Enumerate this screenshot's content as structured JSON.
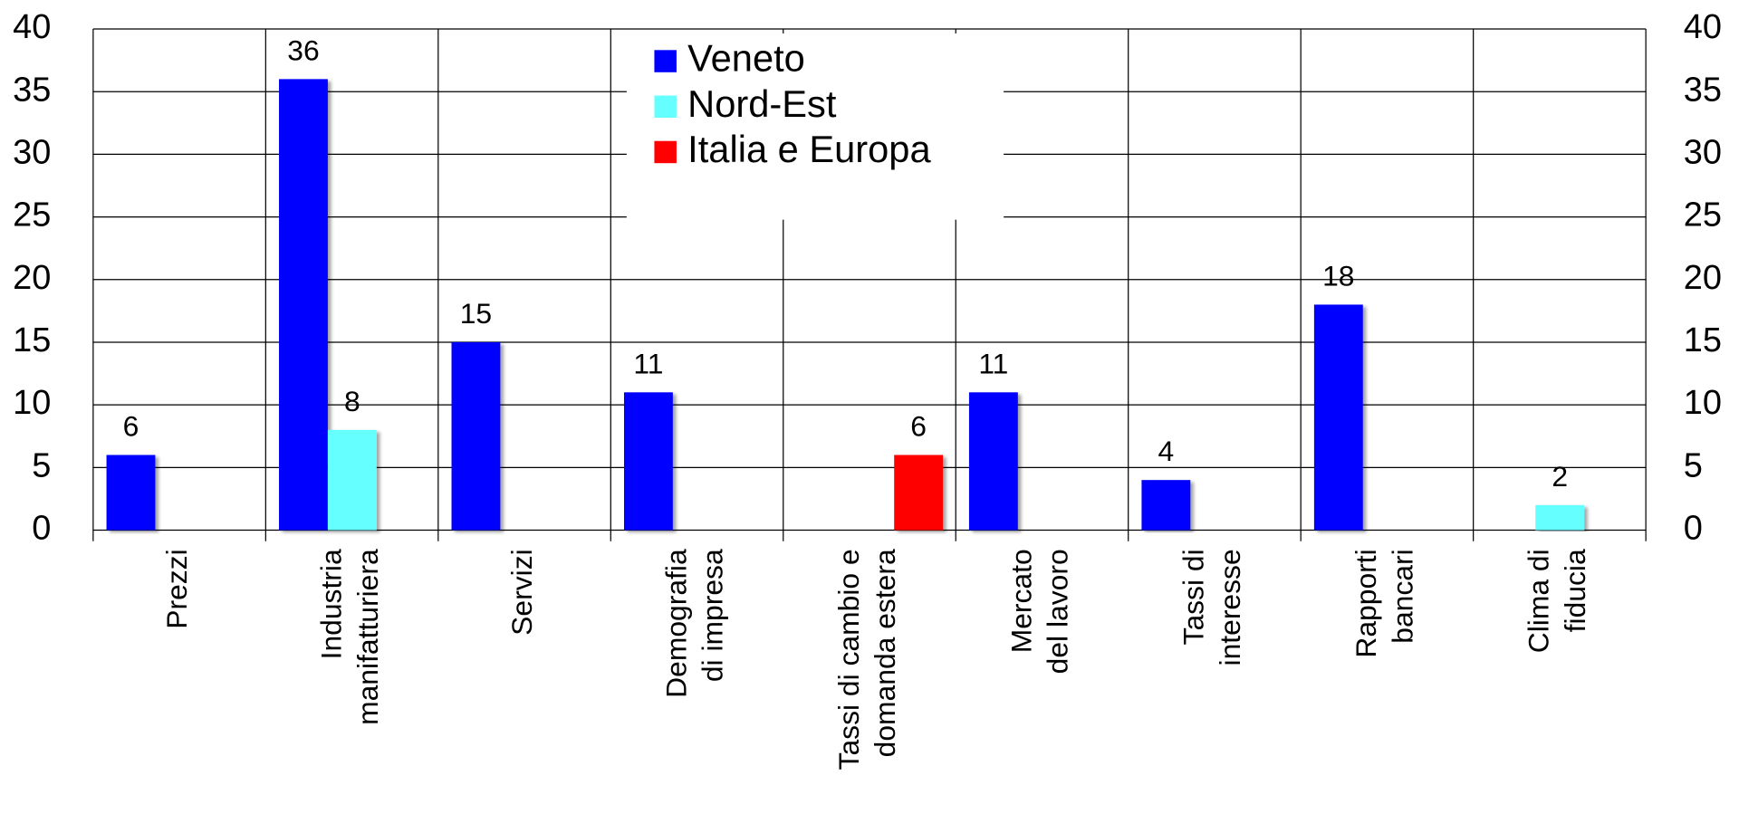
{
  "chart_data": {
    "type": "bar",
    "categories": [
      "Prezzi",
      "Industria\nmanifatturiera",
      "Servizi",
      "Demografia\ndi impresa",
      "Tassi di cambio e\ndomanda estera",
      "Mercato\ndel lavoro",
      "Tassi di\ninteresse",
      "Rapporti\nbancari",
      "Clima di\nfiducia"
    ],
    "series": [
      {
        "name": "Veneto",
        "color": "#0000ff",
        "values": [
          6,
          36,
          15,
          11,
          null,
          11,
          4,
          18,
          null
        ]
      },
      {
        "name": "Nord-Est",
        "color": "#66ffff",
        "values": [
          null,
          8,
          null,
          null,
          null,
          null,
          null,
          null,
          2
        ]
      },
      {
        "name": "Italia e Europa",
        "color": "#ff0000",
        "values": [
          null,
          null,
          null,
          null,
          6,
          null,
          null,
          null,
          null
        ]
      }
    ],
    "ylim": [
      0,
      40
    ],
    "yticks": [
      0,
      5,
      10,
      15,
      20,
      25,
      30,
      35,
      40
    ],
    "y2lim": [
      0,
      40
    ],
    "y2ticks": [
      0,
      5,
      10,
      15,
      20,
      25,
      30,
      35,
      40
    ],
    "grid": true,
    "legend": "upper center"
  }
}
